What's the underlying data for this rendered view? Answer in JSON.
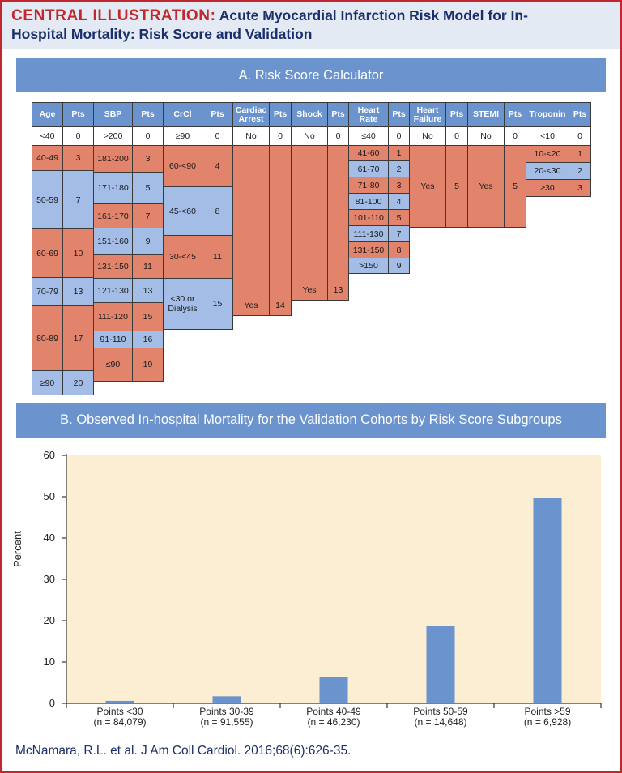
{
  "header": {
    "label": "CENTRAL ILLUSTRATION:",
    "title_line1": "Acute Myocardial Infarction Risk Model for In-",
    "title_line2": "Hospital Mortality: Risk Score and Validation"
  },
  "section_a": {
    "title": "A. Risk Score Calculator"
  },
  "calculator": {
    "headers": [
      "Age",
      "Pts",
      "SBP",
      "Pts",
      "CrCl",
      "Pts",
      "Cardiac Arrest",
      "Pts",
      "Shock",
      "Pts",
      "Heart Rate",
      "Pts",
      "Heart Failure",
      "Pts",
      "STEMI",
      "Pts",
      "Troponin",
      "Pts"
    ],
    "age": [
      [
        "<40",
        "0"
      ],
      [
        "40-49",
        "3"
      ],
      [
        "50-59",
        "7"
      ],
      [
        "60-69",
        "10"
      ],
      [
        "70-79",
        "13"
      ],
      [
        "80-89",
        "17"
      ],
      [
        "≥90",
        "20"
      ]
    ],
    "sbp": [
      [
        ">200",
        "0"
      ],
      [
        "181-200",
        "3"
      ],
      [
        "171-180",
        "5"
      ],
      [
        "161-170",
        "7"
      ],
      [
        "151-160",
        "9"
      ],
      [
        "131-150",
        "11"
      ],
      [
        "121-130",
        "13"
      ],
      [
        "111-120",
        "15"
      ],
      [
        "91-110",
        "16"
      ],
      [
        "≤90",
        "19"
      ]
    ],
    "crcl": [
      [
        "≥90",
        "0"
      ],
      [
        "60-<90",
        "4"
      ],
      [
        "45-<60",
        "8"
      ],
      [
        "30-<45",
        "11"
      ],
      [
        "<30 or Dialysis",
        "15"
      ]
    ],
    "cardiac_arrest": [
      [
        "No",
        "0"
      ],
      [
        "Yes",
        "14"
      ]
    ],
    "shock": [
      [
        "No",
        "0"
      ],
      [
        "Yes",
        "13"
      ]
    ],
    "heart_rate": [
      [
        "≤40",
        "0"
      ],
      [
        "41-60",
        "1"
      ],
      [
        "61-70",
        "2"
      ],
      [
        "71-80",
        "3"
      ],
      [
        "81-100",
        "4"
      ],
      [
        "101-110",
        "5"
      ],
      [
        "111-130",
        "7"
      ],
      [
        "131-150",
        "8"
      ],
      [
        ">150",
        "9"
      ]
    ],
    "heart_failure": [
      [
        "No",
        "0"
      ],
      [
        "Yes",
        "5"
      ]
    ],
    "stemi": [
      [
        "No",
        "0"
      ],
      [
        "Yes",
        "5"
      ]
    ],
    "troponin": [
      [
        "<10",
        "0"
      ],
      [
        "10-<20",
        "1"
      ],
      [
        "20-<30",
        "2"
      ],
      [
        "≥30",
        "3"
      ]
    ]
  },
  "section_b": {
    "title": "B. Observed In-hospital Mortality for the Validation Cohorts by Risk Score Subgroups"
  },
  "colors": {
    "accent_red": "#c0282d",
    "navy": "#1b2f6b",
    "blue": "#6b93cd",
    "light_blue": "#a3bde6",
    "orange": "#e2846b",
    "plot_bg": "#fbeed2"
  },
  "chart_data": {
    "type": "bar",
    "categories": [
      "Points <30",
      "Points 30-39",
      "Points 40-49",
      "Points 50-59",
      "Points >59"
    ],
    "category_notes": [
      "(n = 84,079)",
      "(n = 91,555)",
      "(n = 46,230)",
      "(n = 14,648)",
      "(n = 6,928)"
    ],
    "values": [
      0.6,
      1.7,
      6.4,
      18.8,
      49.7
    ],
    "xlabel": "",
    "ylabel": "Percent",
    "ylim": [
      0,
      60
    ],
    "yticks": [
      "0",
      "10",
      "20",
      "30",
      "40",
      "50",
      "60"
    ],
    "grid": false
  },
  "citation": "McNamara, R.L. et al. J Am Coll Cardiol. 2016;68(6):626-35."
}
